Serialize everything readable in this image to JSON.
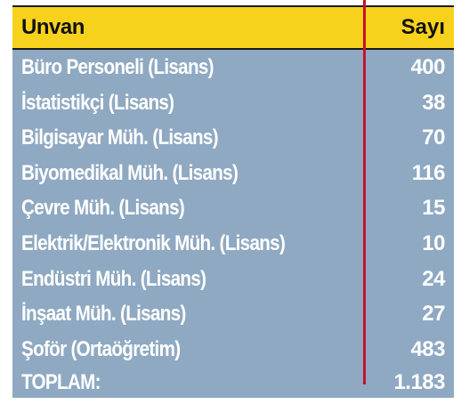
{
  "header": {
    "col_title": "Unvan",
    "col_count": "Sayı"
  },
  "rows": [
    {
      "title": "Büro Personeli (Lisans)",
      "count": "400"
    },
    {
      "title": "İstatistikçi (Lisans)",
      "count": "38"
    },
    {
      "title": "Bilgisayar Müh. (Lisans)",
      "count": "70"
    },
    {
      "title": "Biyomedikal Müh. (Lisans)",
      "count": "116"
    },
    {
      "title": "Çevre Müh. (Lisans)",
      "count": "15"
    },
    {
      "title": "Elektrik/Elektronik Müh. (Lisans)",
      "count": "10"
    },
    {
      "title": "Endüstri Müh. (Lisans)",
      "count": "24"
    },
    {
      "title": "İnşaat Müh. (Lisans)",
      "count": "27"
    },
    {
      "title": "Şoför (Ortaöğretim)",
      "count": "483"
    }
  ],
  "total": {
    "label": "TOPLAM:",
    "count": "1.183"
  },
  "colors": {
    "header_bg": "#f7d21d",
    "body_bg": "#8fa9c2",
    "divider": "#c8102e",
    "text": "#ffffff"
  }
}
